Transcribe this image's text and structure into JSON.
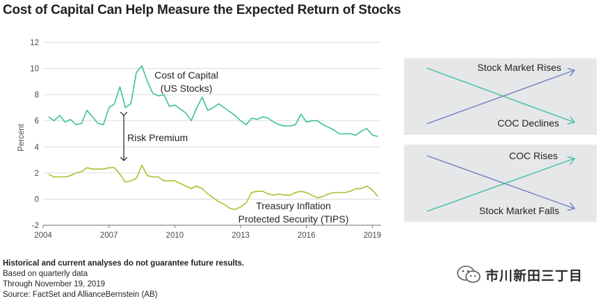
{
  "title": "Cost of Capital Can Help Measure the Expected Return of Stocks",
  "chart_data": {
    "type": "line",
    "ylabel": "Percent",
    "ylim": [
      -2,
      12
    ],
    "yticks": [
      "12",
      "10",
      "8",
      "6",
      "4",
      "2",
      "0",
      "-2"
    ],
    "yticks_values": [
      12,
      10,
      8,
      6,
      4,
      2,
      0,
      -2
    ],
    "xlim": [
      2004,
      2019.4
    ],
    "xticks": [
      "2004",
      "2007",
      "2010",
      "2013",
      "2016",
      "2019"
    ],
    "xticks_values": [
      2004,
      2007,
      2010,
      2013,
      2016,
      2019
    ],
    "grid": "horizontal",
    "series": [
      {
        "name": "Cost of Capital (US Stocks)",
        "color": "#3cbf9f",
        "x": [
          2004.25,
          2004.5,
          2004.75,
          2005.0,
          2005.25,
          2005.5,
          2005.75,
          2006.0,
          2006.25,
          2006.5,
          2006.75,
          2007.0,
          2007.25,
          2007.5,
          2007.75,
          2008.0,
          2008.25,
          2008.5,
          2008.75,
          2009.0,
          2009.25,
          2009.5,
          2009.75,
          2010.0,
          2010.25,
          2010.5,
          2010.75,
          2011.0,
          2011.25,
          2011.5,
          2011.75,
          2012.0,
          2012.25,
          2012.5,
          2012.75,
          2013.0,
          2013.25,
          2013.5,
          2013.75,
          2014.0,
          2014.25,
          2014.5,
          2014.75,
          2015.0,
          2015.25,
          2015.5,
          2015.75,
          2016.0,
          2016.25,
          2016.5,
          2016.75,
          2017.0,
          2017.25,
          2017.5,
          2017.75,
          2018.0,
          2018.25,
          2018.5,
          2018.75,
          2019.0,
          2019.25
        ],
        "values": [
          6.3,
          6.0,
          6.4,
          5.9,
          6.1,
          5.7,
          5.8,
          6.8,
          6.3,
          5.8,
          5.7,
          7.0,
          7.3,
          8.6,
          7.0,
          7.3,
          9.7,
          10.2,
          9.0,
          8.1,
          7.9,
          8.0,
          7.1,
          7.2,
          6.9,
          6.6,
          6.0,
          7.0,
          7.8,
          6.8,
          7.0,
          7.3,
          7.0,
          6.7,
          6.4,
          6.0,
          5.7,
          6.2,
          6.1,
          6.3,
          6.2,
          5.9,
          5.7,
          5.6,
          5.6,
          5.7,
          6.5,
          5.9,
          6.0,
          6.0,
          5.7,
          5.5,
          5.3,
          5.0,
          5.0,
          5.0,
          4.9,
          5.2,
          5.4,
          4.9,
          4.8
        ]
      },
      {
        "name": "Treasury Inflation Protected Security (TIPS)",
        "color": "#a6c22e",
        "x": [
          2004.25,
          2004.5,
          2004.75,
          2005.0,
          2005.25,
          2005.5,
          2005.75,
          2006.0,
          2006.25,
          2006.5,
          2006.75,
          2007.0,
          2007.25,
          2007.5,
          2007.75,
          2008.0,
          2008.25,
          2008.5,
          2008.75,
          2009.0,
          2009.25,
          2009.5,
          2009.75,
          2010.0,
          2010.25,
          2010.5,
          2010.75,
          2011.0,
          2011.25,
          2011.5,
          2011.75,
          2012.0,
          2012.25,
          2012.5,
          2012.75,
          2013.0,
          2013.25,
          2013.5,
          2013.75,
          2014.0,
          2014.25,
          2014.5,
          2014.75,
          2015.0,
          2015.25,
          2015.5,
          2015.75,
          2016.0,
          2016.25,
          2016.5,
          2016.75,
          2017.0,
          2017.25,
          2017.5,
          2017.75,
          2018.0,
          2018.25,
          2018.5,
          2018.75,
          2019.0,
          2019.25
        ],
        "values": [
          1.9,
          1.7,
          1.7,
          1.7,
          1.8,
          2.0,
          2.1,
          2.4,
          2.3,
          2.3,
          2.3,
          2.4,
          2.4,
          1.9,
          1.3,
          1.4,
          1.6,
          2.6,
          1.8,
          1.7,
          1.7,
          1.4,
          1.4,
          1.4,
          1.2,
          1.0,
          0.8,
          1.0,
          0.8,
          0.4,
          0.1,
          -0.2,
          -0.4,
          -0.7,
          -0.8,
          -0.6,
          -0.3,
          0.5,
          0.6,
          0.6,
          0.4,
          0.3,
          0.4,
          0.3,
          0.3,
          0.5,
          0.6,
          0.5,
          0.3,
          0.1,
          0.2,
          0.4,
          0.5,
          0.5,
          0.5,
          0.6,
          0.8,
          0.8,
          1.0,
          0.7,
          0.2
        ]
      }
    ],
    "annotations": {
      "coc_label_line1": "Cost of Capital",
      "coc_label_line2": "(US Stocks)",
      "risk_premium": "Risk Premium",
      "tips_label_line1": "Treasury Inflation",
      "tips_label_line2": "Protected Security (TIPS)"
    }
  },
  "scenarios": [
    {
      "top_label": "Stock Market Rises",
      "bottom_label": "COC Declines"
    },
    {
      "top_label": "COC Rises",
      "bottom_label": "Stock Market Falls"
    }
  ],
  "colors": {
    "coc": "#3cbf9f",
    "tips": "#a6c22e",
    "blue_arrow": "#6a7fc4",
    "box_bg": "#e6e7e8",
    "grid": "#d1d3d4"
  },
  "notes": {
    "disclaimer": "Historical and current analyses do not guarantee future results.",
    "line1": "Based on quarterly data",
    "line2": "Through November 19, 2019",
    "line3": "Source: FactSet and AllianceBernstein (AB)"
  },
  "watermark": {
    "text": "市川新田三丁目"
  }
}
